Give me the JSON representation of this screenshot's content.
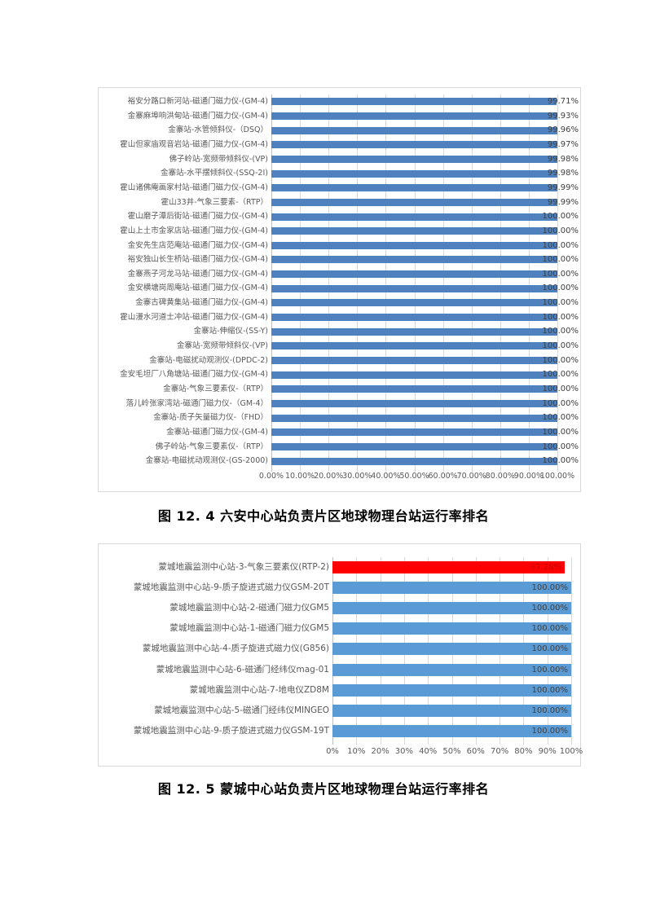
{
  "page": {
    "background": "#ffffff"
  },
  "colors": {
    "chart1_bar": "#4e81bd",
    "chart2_bar": "#5b9bd5",
    "highlight_bar": "#ff0000",
    "highlight_value_text": "#c00000",
    "value_text": "#404040",
    "axis_text": "#595959",
    "gridline": "#d9d9d9",
    "chart_border": "#d9d9d9",
    "caption_text": "#000000"
  },
  "chart_data": [
    {
      "type": "bar",
      "orientation": "horizontal",
      "title": "",
      "caption": "图 12. 4 六安中心站负责片区地球物理台站运行率排名",
      "xlim": [
        0,
        100
      ],
      "grid": true,
      "legend": "none",
      "bar_color": "#4e81bd",
      "categories": [
        "裕安分路口新河站-磁通门磁力仪-(GM-4)",
        "金寨麻埠响洪甸站-磁通门磁力仪-(GM-4)",
        "金寨站-水管倾斜仪-（DSQ）",
        "霍山但家庙观音岩站-磁通门磁力仪-(GM-4)",
        "佛子岭站-宽频带倾斜仪-(VP)",
        "金寨站-水平摆倾斜仪-(SSQ-2I)",
        "霍山诸佛庵画家村站-磁通门磁力仪-(GM-4)",
        "霍山33井-气象三要素-（RTP）",
        "霍山磨子潭后街站-磁通门磁力仪-(GM-4)",
        "霍山上土市金家店站-磁通门磁力仪-(GM-4)",
        "金安先生店范庵站-磁通门磁力仪-(GM-4)",
        "裕安独山长生桥站-磁通门磁力仪-(GM-4)",
        "金寨燕子河龙马站-磁通门磁力仪-(GM-4)",
        "金安横塘岗周庵站-磁通门磁力仪-(GM-4)",
        "金寨古碑黄集站-磁通门磁力仪-(GM-4)",
        "霍山漫水河道士冲站-磁通门磁力仪-(GM-4)",
        "金寨站-伸缩仪-(SS-Y)",
        "金寨站-宽频带倾斜仪-(VP)",
        "金寨站-电磁扰动观测仪-(DPDC-2)",
        "金安毛坦厂八角塘站-磁通门磁力仪-(GM-4)",
        "金寨站-气象三要素仪-（RTP）",
        "落儿岭张家湾站-磁通门磁力仪-（GM-4）",
        "金寨站-质子矢量磁力仪-（FHD）",
        "金寨站-磁通门磁力仪-(GM-4)",
        "佛子岭站-气象三要素仪-（RTP）",
        "金寨站-电磁扰动观测仪-(GS-2000)"
      ],
      "values": [
        99.71,
        99.93,
        99.96,
        99.97,
        99.98,
        99.98,
        99.99,
        99.99,
        100,
        100,
        100,
        100,
        100,
        100,
        100,
        100,
        100,
        100,
        100,
        100,
        100,
        100,
        100,
        100,
        100,
        100
      ],
      "value_labels": [
        "99.71%",
        "99.93%",
        "99.96%",
        "99.97%",
        "99.98%",
        "99.98%",
        "99.99%",
        "99.99%",
        "100.00%",
        "100.00%",
        "100.00%",
        "100.00%",
        "100.00%",
        "100.00%",
        "100.00%",
        "100.00%",
        "100.00%",
        "100.00%",
        "100.00%",
        "100.00%",
        "100.00%",
        "100.00%",
        "100.00%",
        "100.00%",
        "100.00%",
        "100.00%"
      ],
      "x_tick_labels": [
        "0.00%",
        "10.00%",
        "20.00%",
        "30.00%",
        "40.00%",
        "50.00%",
        "60.00%",
        "70.00%",
        "80.00%",
        "90.00%",
        "100.00%"
      ]
    },
    {
      "type": "bar",
      "orientation": "horizontal",
      "title": "",
      "caption": "图 12. 5 蒙城中心站负责片区地球物理台站运行率排名",
      "xlim": [
        0,
        100
      ],
      "grid": true,
      "legend": "none",
      "bar_color": "#5b9bd5",
      "highlight": {
        "index": 0,
        "bar_color": "#ff0000",
        "value_text_color": "#c00000"
      },
      "categories": [
        "蒙城地震监测中心站-3-气象三要素仪(RTP-2)",
        "蒙城地震监测中心站-9-质子旋进式磁力仪GSM-20T",
        "蒙城地震监测中心站-2-磁通门磁力仪GM5",
        "蒙城地震监测中心站-1-磁通门磁力仪GM5",
        "蒙城地震监测中心站-4-质子旋进式磁力仪(G856)",
        "蒙城地震监测中心站-6-磁通门经纬仪mag-01",
        "蒙城地震监测中心站-7-地电仪ZD8M",
        "蒙城地震监测中心站-5-磁通门经纬仪MINGEO",
        "蒙城地震监测中心站-9-质子旋进式磁力仪GSM-19T"
      ],
      "values": [
        97.28,
        100,
        100,
        100,
        100,
        100,
        100,
        100,
        100
      ],
      "value_labels": [
        "97.28%",
        "100.00%",
        "100.00%",
        "100.00%",
        "100.00%",
        "100.00%",
        "100.00%",
        "100.00%",
        "100.00%"
      ],
      "x_tick_labels": [
        "0%",
        "10%",
        "20%",
        "30%",
        "40%",
        "50%",
        "60%",
        "70%",
        "80%",
        "90%",
        "100%"
      ]
    }
  ]
}
